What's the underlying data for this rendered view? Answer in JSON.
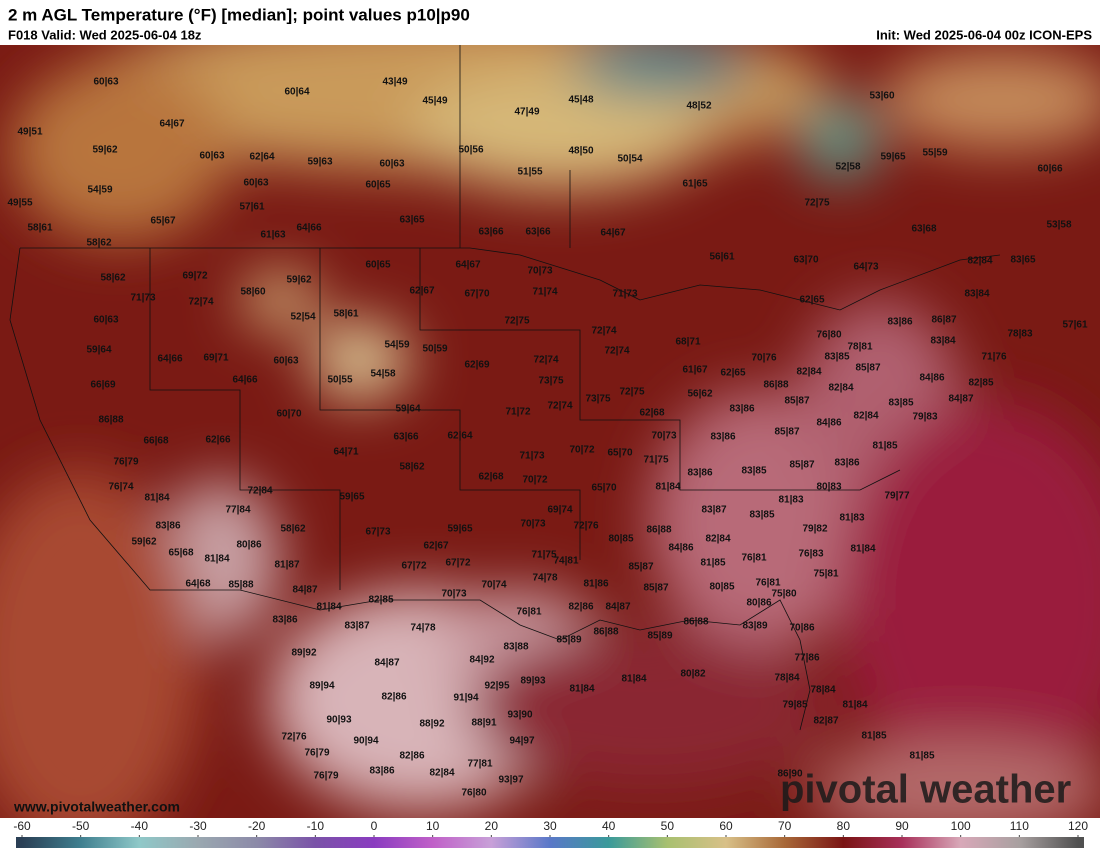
{
  "header": {
    "title": "2 m AGL Temperature (°F) [median]; point values p10|p90",
    "valid": "F018 Valid: Wed 2025-06-04 18z",
    "init": "Init: Wed 2025-06-04 00z ICON-EPS"
  },
  "labels": [
    "60|63",
    "43|49",
    "60|64",
    "45|49",
    "47|49",
    "45|48",
    "48|52",
    "49|51",
    "64|67",
    "59|62",
    "60|63",
    "62|64",
    "59|63",
    "60|63",
    "50|56",
    "48|50",
    "50|54",
    "55|59",
    "59|65",
    "60|66",
    "52|58",
    "53|60",
    "51|55",
    "60|63",
    "60|65",
    "61|65",
    "54|59",
    "49|55",
    "57|61",
    "72|75",
    "65|67",
    "58|61",
    "63|65",
    "61|63",
    "64|66",
    "63|66",
    "63|66",
    "64|67",
    "63|68",
    "53|58",
    "58|62",
    "56|61",
    "63|70",
    "64|73",
    "82|84",
    "83|65",
    "60|65",
    "64|67",
    "70|73",
    "69|72",
    "58|62",
    "59|62",
    "71|73",
    "72|74",
    "58|60",
    "62|67",
    "67|70",
    "71|74",
    "71|73",
    "62|65",
    "83|84",
    "60|63",
    "52|54",
    "58|61",
    "72|75",
    "72|74",
    "76|80",
    "83|86",
    "86|87",
    "78|83",
    "57|61",
    "59|64",
    "54|59",
    "50|59",
    "72|74",
    "68|71",
    "78|81",
    "83|84",
    "64|66",
    "69|71",
    "60|63",
    "62|69",
    "72|74",
    "70|76",
    "83|85",
    "71|76",
    "66|69",
    "64|66",
    "50|55",
    "54|58",
    "73|75",
    "72|75",
    "61|67",
    "62|65",
    "85|87",
    "84|86",
    "82|85",
    "86|88",
    "82|84",
    "82|84",
    "85|87",
    "84|87",
    "83|85",
    "79|83",
    "86|88",
    "59|64",
    "71|72",
    "73|75",
    "72|74",
    "62|68",
    "56|62",
    "83|86",
    "82|84",
    "60|70",
    "84|86",
    "66|68",
    "62|66",
    "63|66",
    "62|64",
    "70|73",
    "83|86",
    "85|87",
    "81|85",
    "76|79",
    "64|71",
    "71|73",
    "70|72",
    "65|70",
    "71|75",
    "83|86",
    "85|87",
    "83|86",
    "58|62",
    "83|85",
    "76|74",
    "62|68",
    "70|72",
    "65|70",
    "81|84",
    "80|83",
    "81|84",
    "72|84",
    "59|65",
    "81|83",
    "79|77",
    "77|84",
    "69|74",
    "83|87",
    "83|85",
    "81|83",
    "83|86",
    "58|62",
    "67|73",
    "59|65",
    "70|73",
    "72|76",
    "86|88",
    "79|82",
    "59|62",
    "80|86",
    "62|67",
    "80|85",
    "84|86",
    "82|84",
    "76|83",
    "81|84",
    "65|68",
    "81|84",
    "81|87",
    "67|72",
    "67|72",
    "71|75",
    "74|81",
    "85|87",
    "81|85",
    "76|81",
    "75|81",
    "64|68",
    "85|88",
    "84|87",
    "70|74",
    "74|78",
    "81|86",
    "80|85",
    "76|81",
    "85|87",
    "82|85",
    "70|73",
    "75|80",
    "81|84",
    "76|81",
    "82|86",
    "84|87",
    "80|86",
    "83|86",
    "83|87",
    "74|78",
    "86|88",
    "83|89",
    "70|86",
    "85|89",
    "86|88",
    "85|89",
    "83|88",
    "89|92",
    "84|87",
    "84|92",
    "77|86",
    "89|94",
    "82|86",
    "91|94",
    "92|95",
    "89|93",
    "81|84",
    "81|84",
    "80|82",
    "78|84",
    "78|84",
    "79|85",
    "81|84",
    "88|92",
    "88|91",
    "93|90",
    "82|87",
    "90|93",
    "72|76",
    "90|94",
    "94|97",
    "81|85",
    "76|79",
    "82|86",
    "81|85",
    "77|81",
    "76|79",
    "83|86",
    "82|84",
    "93|97",
    "86|90",
    "76|80"
  ],
  "watermark": {
    "brand": "pivotal weather",
    "url": "www.pivotalweather.com"
  },
  "colorbar": {
    "ticks": [
      -60,
      -50,
      -40,
      -30,
      -20,
      -10,
      0,
      10,
      20,
      30,
      40,
      50,
      60,
      70,
      80,
      90,
      100,
      110,
      120
    ],
    "colors": [
      "#2a3f55",
      "#3f7f8f",
      "#8fc8c8",
      "#9aa8b0",
      "#8c8aa8",
      "#7a52a8",
      "#8a3cc0",
      "#c060c8",
      "#c8a0d8",
      "#5a78c8",
      "#3a9a9a",
      "#a8c070",
      "#d8c088",
      "#a86838",
      "#7a1414",
      "#a8305a",
      "#d8a8b8",
      "#a8a0a0",
      "#505050"
    ]
  }
}
